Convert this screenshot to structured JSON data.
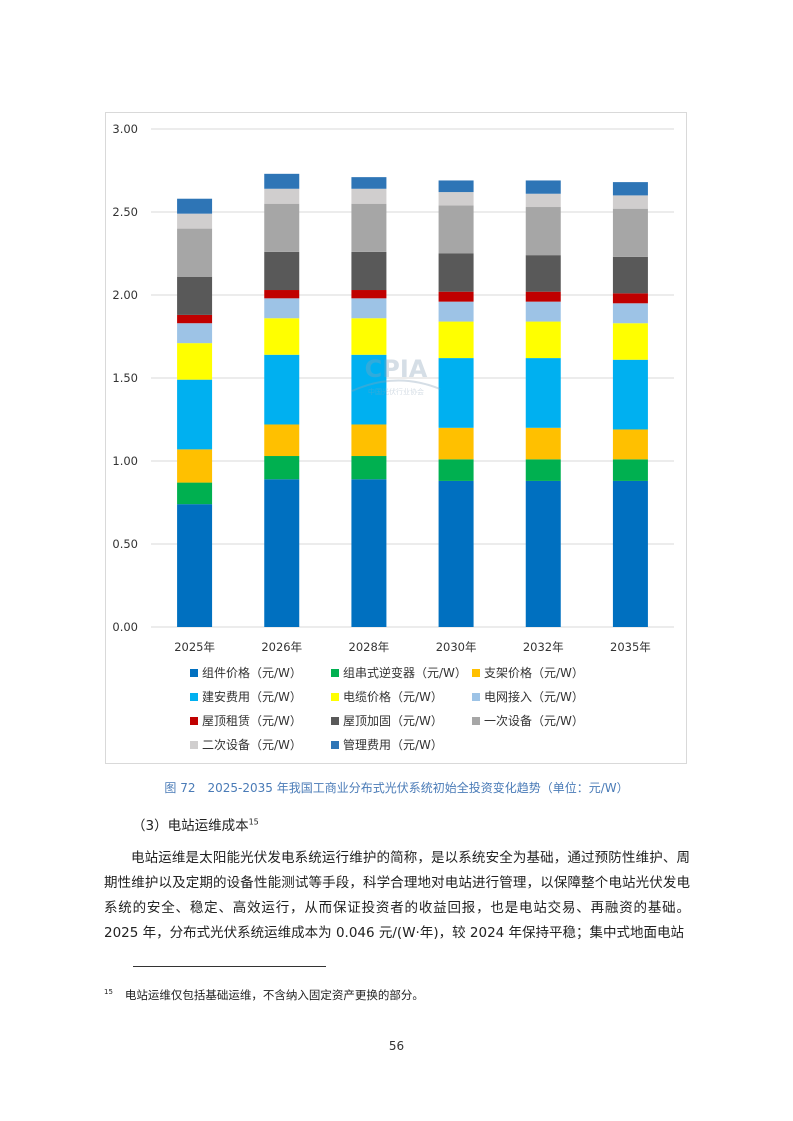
{
  "chart_data": {
    "type": "stacked-bar",
    "title": "",
    "xlabel": "",
    "ylabel": "",
    "ylim": [
      0,
      3.0
    ],
    "yticks": [
      "0.00",
      "0.50",
      "1.00",
      "1.50",
      "2.00",
      "2.50",
      "3.00"
    ],
    "grid": true,
    "legend_position": "bottom",
    "categories": [
      "2025年",
      "2026年",
      "2028年",
      "2030年",
      "2032年",
      "2035年"
    ],
    "series": [
      {
        "name": "组件价格（元/W）",
        "color": "#0070c0",
        "values": [
          0.74,
          0.89,
          0.89,
          0.88,
          0.88,
          0.88
        ]
      },
      {
        "name": "组串式逆变器（元/W）",
        "color": "#00b050",
        "values": [
          0.13,
          0.14,
          0.14,
          0.13,
          0.13,
          0.13
        ]
      },
      {
        "name": "支架价格（元/W）",
        "color": "#ffc000",
        "values": [
          0.2,
          0.19,
          0.19,
          0.19,
          0.19,
          0.18
        ]
      },
      {
        "name": "建安费用（元/W）",
        "color": "#00b0f0",
        "values": [
          0.42,
          0.42,
          0.42,
          0.42,
          0.42,
          0.42
        ]
      },
      {
        "name": "电缆价格（元/W）",
        "color": "#ffff00",
        "values": [
          0.22,
          0.22,
          0.22,
          0.22,
          0.22,
          0.22
        ]
      },
      {
        "name": "电网接入（元/W）",
        "color": "#9dc3e6",
        "values": [
          0.12,
          0.12,
          0.12,
          0.12,
          0.12,
          0.12
        ]
      },
      {
        "name": "屋顶租赁（元/W）",
        "color": "#c00000",
        "values": [
          0.05,
          0.05,
          0.05,
          0.06,
          0.06,
          0.06
        ]
      },
      {
        "name": "屋顶加固（元/W）",
        "color": "#595959",
        "values": [
          0.23,
          0.23,
          0.23,
          0.23,
          0.22,
          0.22
        ]
      },
      {
        "name": "一次设备（元/W）",
        "color": "#a6a6a6",
        "values": [
          0.29,
          0.29,
          0.29,
          0.29,
          0.29,
          0.29
        ]
      },
      {
        "name": "二次设备（元/W）",
        "color": "#d0cece",
        "values": [
          0.09,
          0.09,
          0.09,
          0.08,
          0.08,
          0.08
        ]
      },
      {
        "name": "管理费用（元/W）",
        "color": "#2e75b6",
        "values": [
          0.09,
          0.09,
          0.07,
          0.07,
          0.08,
          0.08
        ]
      }
    ]
  },
  "watermark": {
    "logo_text": "CPIA",
    "sub_text": "中国光伏行业协会"
  },
  "caption": "图 72　2025-2035 年我国工商业分布式光伏系统初始全投资变化趋势（单位：元/W）",
  "section": {
    "heading": "（3）电站运维成本",
    "footnote_ref": "15"
  },
  "body_text": "电站运维是太阳能光伏发电系统运行维护的简称，是以系统安全为基础，通过预防性维护、周期性维护以及定期的设备性能测试等手段，科学合理地对电站进行管理，以保障整个电站光伏发电系统的安全、稳定、高效运行，从而保证投资者的收益回报，也是电站交易、再融资的基础。2025 年，分布式光伏系统运维成本为 0.046 元/(W·年)，较 2024 年保持平稳；集中式地面电站",
  "footnote": {
    "number": "15",
    "text": "电站运维仅包括基础运维，不含纳入固定资产更换的部分。"
  },
  "page_number": "56"
}
